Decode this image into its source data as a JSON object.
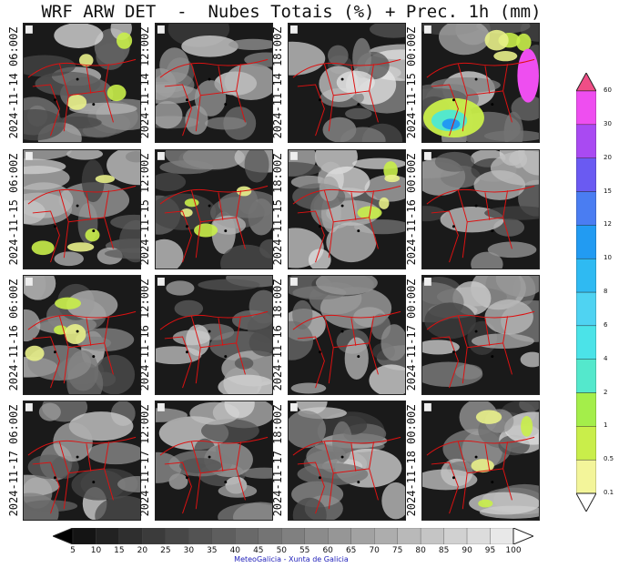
{
  "title": "WRF ARW DET  -  Nubes Totais (%) + Prec. 1h (mm)",
  "credit": "MeteoGalicia - Xunta de Galicia",
  "panels": [
    {
      "time": "2024-11-14 06:00Z"
    },
    {
      "time": "2024-11-14 12:00Z"
    },
    {
      "time": "2024-11-14 18:00Z"
    },
    {
      "time": "2024-11-15 00:00Z"
    },
    {
      "time": "2024-11-15 06:00Z"
    },
    {
      "time": "2024-11-15 12:00Z"
    },
    {
      "time": "2024-11-15 18:00Z"
    },
    {
      "time": "2024-11-16 00:00Z"
    },
    {
      "time": "2024-11-16 06:00Z"
    },
    {
      "time": "2024-11-16 12:00Z"
    },
    {
      "time": "2024-11-16 18:00Z"
    },
    {
      "time": "2024-11-17 00:00Z"
    },
    {
      "time": "2024-11-17 06:00Z"
    },
    {
      "time": "2024-11-17 12:00Z"
    },
    {
      "time": "2024-11-17 18:00Z"
    },
    {
      "time": "2024-11-18 00:00Z"
    }
  ],
  "precip_colorbar": {
    "ticks": [
      "0.1",
      "0.5",
      "1",
      "2",
      "4",
      "6",
      "8",
      "10",
      "12",
      "15",
      "20",
      "30",
      "60"
    ],
    "colors": [
      "#fffbcf",
      "#f3f59a",
      "#c9ee4a",
      "#a4ee4a",
      "#54e8cc",
      "#4be3e8",
      "#4fd3f2",
      "#2fbaf2",
      "#229bf2",
      "#4a7df2",
      "#6a5af2",
      "#a94af2",
      "#ee4ef0"
    ],
    "extend_color": "#ef4e86"
  },
  "cloud_colorbar": {
    "ticks": [
      "5",
      "10",
      "15",
      "20",
      "25",
      "30",
      "35",
      "40",
      "45",
      "50",
      "55",
      "60",
      "65",
      "70",
      "75",
      "80",
      "85",
      "90",
      "95",
      "100"
    ],
    "colors": [
      "#141414",
      "#222222",
      "#2f2f2f",
      "#3b3b3b",
      "#474747",
      "#535353",
      "#5e5e5e",
      "#696969",
      "#747474",
      "#808080",
      "#8b8b8b",
      "#969696",
      "#a2a2a2",
      "#adadad",
      "#b9b9b9",
      "#c5c5c5",
      "#d1d1d1",
      "#dcdcdc",
      "#e8e8e8",
      "#f4f4f4"
    ]
  }
}
